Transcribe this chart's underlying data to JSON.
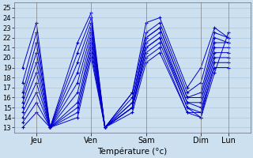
{
  "xlabel": "Température (°c)",
  "bg_color": "#cce0f0",
  "grid_color": "#aac8e0",
  "line_color": "#0000cc",
  "ylim": [
    12.5,
    25.5
  ],
  "yticks": [
    13,
    14,
    15,
    16,
    17,
    18,
    19,
    20,
    21,
    22,
    23,
    24,
    25
  ],
  "days": [
    "Jeu",
    "Ven",
    "Sam",
    "Dim",
    "Lun"
  ],
  "day_x": [
    0.5,
    2.5,
    4.5,
    6.5,
    7.5
  ],
  "xlim": [
    -0.3,
    8.3
  ],
  "series": [
    [
      19.0,
      23.5,
      13.0,
      21.5,
      24.5,
      13.0,
      16.5,
      23.5,
      24.0,
      17.0,
      19.0,
      23.0,
      22.0
    ],
    [
      17.5,
      22.5,
      13.0,
      20.5,
      24.0,
      13.0,
      16.5,
      22.5,
      23.5,
      16.5,
      17.5,
      22.5,
      22.0
    ],
    [
      16.5,
      21.5,
      13.0,
      19.5,
      23.5,
      13.0,
      16.0,
      22.0,
      23.0,
      16.0,
      16.5,
      22.0,
      21.5
    ],
    [
      16.0,
      20.5,
      13.0,
      18.5,
      23.0,
      13.0,
      15.5,
      22.0,
      23.0,
      16.0,
      16.0,
      21.5,
      21.5
    ],
    [
      15.5,
      19.5,
      13.0,
      17.5,
      22.5,
      13.0,
      15.5,
      21.5,
      22.5,
      15.5,
      15.5,
      21.0,
      21.0
    ],
    [
      15.0,
      18.5,
      13.0,
      16.5,
      22.0,
      13.0,
      15.0,
      21.0,
      22.0,
      15.5,
      15.0,
      20.5,
      20.5
    ],
    [
      14.5,
      17.5,
      13.0,
      15.5,
      21.5,
      13.0,
      15.0,
      21.0,
      22.0,
      15.0,
      14.5,
      20.0,
      20.0
    ],
    [
      14.0,
      16.5,
      13.0,
      15.0,
      21.0,
      13.0,
      15.0,
      20.5,
      21.5,
      15.0,
      14.0,
      19.5,
      19.5
    ],
    [
      13.5,
      15.5,
      13.0,
      14.5,
      20.5,
      13.0,
      15.0,
      20.0,
      21.0,
      14.5,
      14.5,
      19.0,
      19.0
    ],
    [
      13.0,
      14.5,
      13.0,
      14.0,
      20.0,
      13.0,
      14.5,
      19.5,
      20.5,
      14.5,
      14.0,
      18.5,
      22.5
    ]
  ],
  "x_coords": [
    0.0,
    0.5,
    1.0,
    2.0,
    2.5,
    3.0,
    4.0,
    4.5,
    5.0,
    6.0,
    6.5,
    7.0,
    7.5
  ]
}
